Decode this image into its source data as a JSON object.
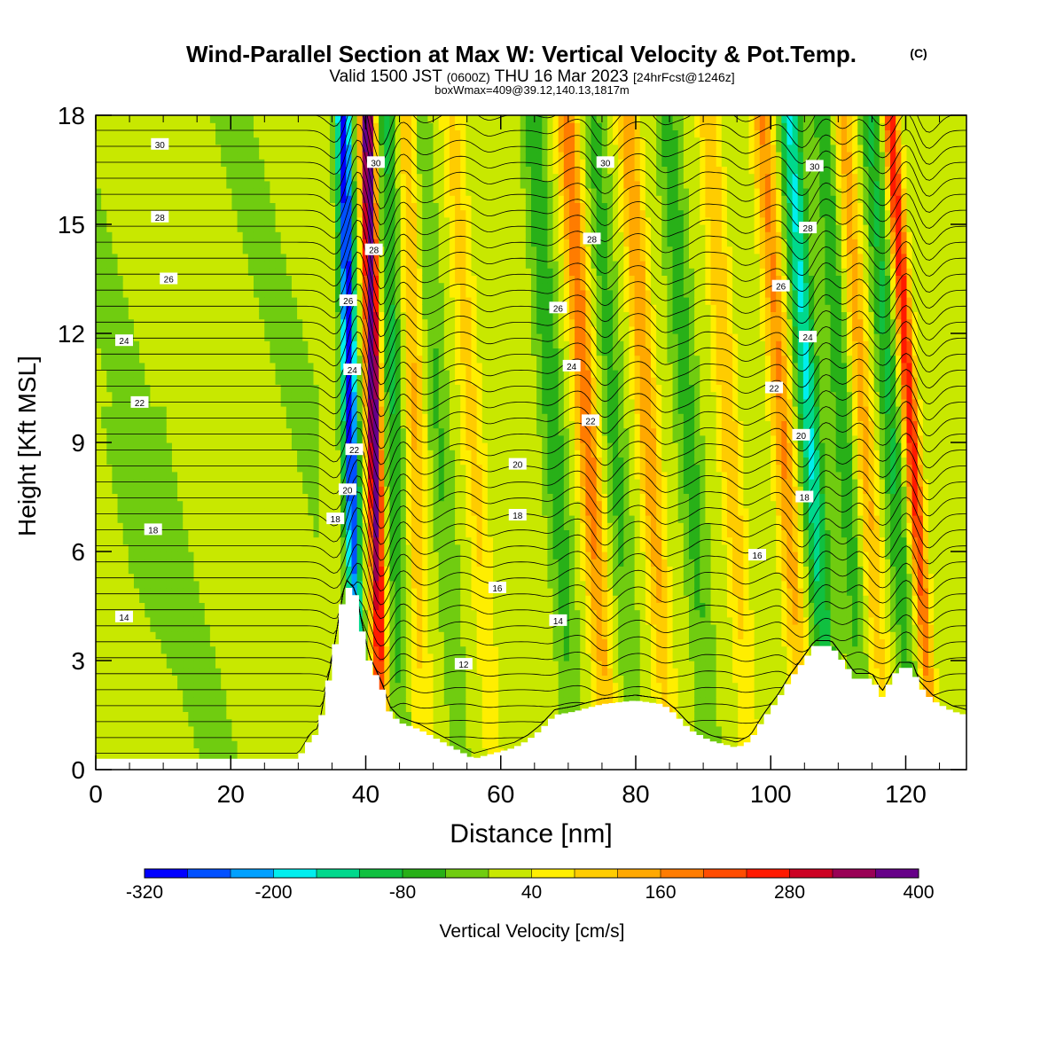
{
  "chart_data": {
    "type": "heatmap",
    "title": "Wind-Parallel Section at Max W: Vertical Velocity & Pot.Temp.",
    "title_mark": "(C)",
    "subtitle_main": "Valid 1500 JST",
    "subtitle_z": "(0600Z)",
    "subtitle_date": "THU 16 Mar 2023",
    "subtitle_fcst": "[24hrFcst@1246z]",
    "subtitle2": "boxWmax=409@39.12,140.13,1817m",
    "xlabel": "Distance [nm]",
    "ylabel": "Height [Kft MSL]",
    "xlim": [
      0,
      129
    ],
    "ylim": [
      0,
      18
    ],
    "xticks": [
      0,
      20,
      40,
      60,
      80,
      100,
      120
    ],
    "yticks": [
      0,
      3,
      6,
      9,
      12,
      15,
      18
    ],
    "colorbar": {
      "label": "Vertical Velocity [cm/s]",
      "tick_labels": [
        "-320",
        "-200",
        "-80",
        "40",
        "160",
        "280",
        "400"
      ],
      "tick_values": [
        -320,
        -200,
        -80,
        40,
        160,
        280,
        400
      ],
      "min": -320,
      "max": 400,
      "colors": [
        "#0000ff",
        "#0050ff",
        "#00a0ff",
        "#00eeee",
        "#00d88c",
        "#10c040",
        "#28b018",
        "#70cc10",
        "#c8e800",
        "#ffee00",
        "#ffcc00",
        "#ffa800",
        "#ff7c00",
        "#ff4c00",
        "#ff1a00",
        "#cc0022",
        "#990055",
        "#660088"
      ]
    },
    "w_updrafts": [
      {
        "x": 42,
        "w": 400
      },
      {
        "x": 48,
        "w": 110
      },
      {
        "x": 58,
        "w": 80
      },
      {
        "x": 75,
        "w": 180
      },
      {
        "x": 84,
        "w": 140
      },
      {
        "x": 96,
        "w": 100
      },
      {
        "x": 104,
        "w": 150
      },
      {
        "x": 116,
        "w": 120
      },
      {
        "x": 123,
        "w": 260
      }
    ],
    "w_downdrafts": [
      {
        "x": 38.5,
        "w": -320
      },
      {
        "x": 45,
        "w": -100
      },
      {
        "x": 53,
        "w": -60
      },
      {
        "x": 70,
        "w": -90
      },
      {
        "x": 79,
        "w": -70
      },
      {
        "x": 90,
        "w": -80
      },
      {
        "x": 108,
        "w": -180
      },
      {
        "x": 113,
        "w": -90
      },
      {
        "x": 120,
        "w": -100
      }
    ],
    "terrain": [
      [
        0,
        0.3
      ],
      [
        30,
        0.3
      ],
      [
        31,
        0.6
      ],
      [
        32,
        0.9
      ],
      [
        33,
        1.0
      ],
      [
        34,
        2.0
      ],
      [
        35,
        2.9
      ],
      [
        36,
        4.0
      ],
      [
        37,
        5.1
      ],
      [
        38.5,
        4.8
      ],
      [
        39.5,
        3.8
      ],
      [
        40.5,
        3.0
      ],
      [
        41.5,
        2.6
      ],
      [
        42.5,
        2.2
      ],
      [
        43.5,
        1.6
      ],
      [
        45,
        1.3
      ],
      [
        48,
        1.1
      ],
      [
        51,
        0.8
      ],
      [
        54,
        0.5
      ],
      [
        56,
        0.3
      ],
      [
        62,
        0.6
      ],
      [
        64,
        0.8
      ],
      [
        66,
        1.1
      ],
      [
        68,
        1.5
      ],
      [
        71,
        1.6
      ],
      [
        75,
        1.8
      ],
      [
        80,
        1.9
      ],
      [
        84,
        1.8
      ],
      [
        86,
        1.5
      ],
      [
        88,
        1.1
      ],
      [
        91,
        0.8
      ],
      [
        95,
        0.6
      ],
      [
        97,
        0.8
      ],
      [
        99,
        1.4
      ],
      [
        101,
        1.9
      ],
      [
        103,
        2.5
      ],
      [
        105,
        3.0
      ],
      [
        106.5,
        3.4
      ],
      [
        109,
        3.4
      ],
      [
        111,
        2.9
      ],
      [
        112.5,
        2.5
      ],
      [
        115,
        2.5
      ],
      [
        116.5,
        2.0
      ],
      [
        118,
        2.5
      ],
      [
        119,
        2.8
      ],
      [
        121,
        2.8
      ],
      [
        122,
        2.3
      ],
      [
        124,
        1.9
      ],
      [
        127,
        1.6
      ],
      [
        129,
        1.5
      ]
    ],
    "theta_levels": [
      11,
      11.5,
      12,
      12.5,
      13,
      13.5,
      14,
      14.5,
      15,
      15.5,
      16,
      16.5,
      17,
      17.5,
      18,
      18.5,
      19,
      19.5,
      20,
      20.5,
      21,
      21.5,
      22,
      22.5,
      23,
      23.5,
      24,
      24.5,
      25,
      25.5,
      26,
      26.5,
      27,
      27.5,
      28,
      28.5,
      29,
      29.5,
      30,
      30.5,
      31
    ],
    "contour_labels": [
      {
        "text": "30",
        "x": 9.5,
        "y": 17.2
      },
      {
        "text": "28",
        "x": 9.5,
        "y": 15.2
      },
      {
        "text": "26",
        "x": 10.8,
        "y": 13.5
      },
      {
        "text": "24",
        "x": 4.2,
        "y": 11.8
      },
      {
        "text": "22",
        "x": 6.5,
        "y": 10.1
      },
      {
        "text": "18",
        "x": 8.5,
        "y": 6.6
      },
      {
        "text": "14",
        "x": 4.2,
        "y": 4.2
      },
      {
        "text": "18",
        "x": 35.5,
        "y": 6.9
      },
      {
        "text": "20",
        "x": 37.3,
        "y": 7.7
      },
      {
        "text": "22",
        "x": 38.3,
        "y": 8.8
      },
      {
        "text": "24",
        "x": 38.0,
        "y": 11.0
      },
      {
        "text": "26",
        "x": 37.4,
        "y": 12.9
      },
      {
        "text": "28",
        "x": 41.2,
        "y": 14.3
      },
      {
        "text": "30",
        "x": 41.5,
        "y": 16.7
      },
      {
        "text": "30",
        "x": 75.5,
        "y": 16.7
      },
      {
        "text": "28",
        "x": 73.5,
        "y": 14.6
      },
      {
        "text": "26",
        "x": 68.5,
        "y": 12.7
      },
      {
        "text": "24",
        "x": 70.5,
        "y": 11.1
      },
      {
        "text": "22",
        "x": 73.3,
        "y": 9.6
      },
      {
        "text": "20",
        "x": 62.5,
        "y": 8.4
      },
      {
        "text": "18",
        "x": 62.5,
        "y": 7.0
      },
      {
        "text": "16",
        "x": 59.5,
        "y": 5.0
      },
      {
        "text": "14",
        "x": 68.5,
        "y": 4.1
      },
      {
        "text": "12",
        "x": 54.5,
        "y": 2.9
      },
      {
        "text": "30",
        "x": 106.5,
        "y": 16.6
      },
      {
        "text": "28",
        "x": 105.5,
        "y": 14.9
      },
      {
        "text": "26",
        "x": 101.5,
        "y": 13.3
      },
      {
        "text": "24",
        "x": 105.5,
        "y": 11.9
      },
      {
        "text": "22",
        "x": 100.5,
        "y": 10.5
      },
      {
        "text": "20",
        "x": 104.5,
        "y": 9.2
      },
      {
        "text": "18",
        "x": 105.0,
        "y": 7.5
      },
      {
        "text": "16",
        "x": 98.0,
        "y": 5.9
      }
    ]
  }
}
